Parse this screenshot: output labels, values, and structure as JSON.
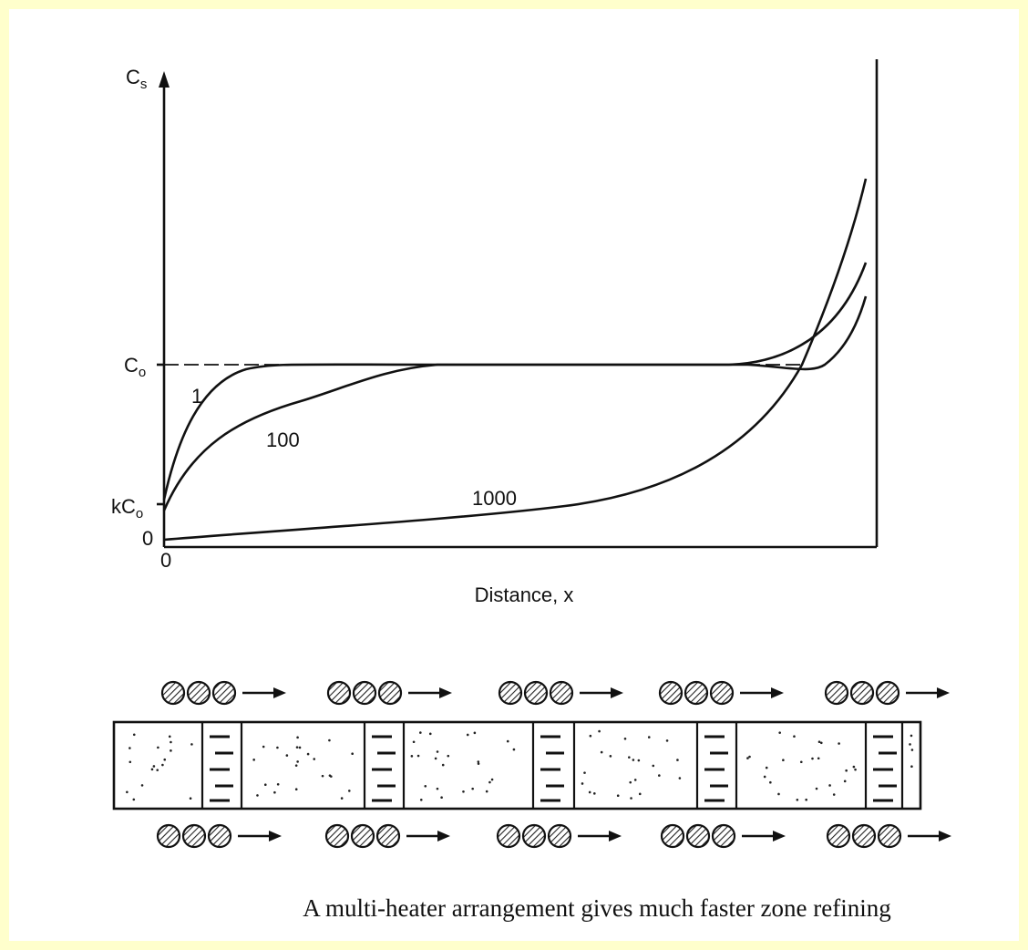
{
  "plot": {
    "y_axis_label": {
      "main": "C",
      "sub": "s"
    },
    "y_marks": [
      {
        "main": "C",
        "sub": "o"
      },
      {
        "main": "kC",
        "sub": "o"
      },
      {
        "main": "0",
        "sub": ""
      }
    ],
    "x_origin": "0",
    "x_axis_label": "Distance, x",
    "curve_labels": [
      "1",
      "100",
      "1000"
    ]
  },
  "caption": "A multi-heater arrangement gives much faster zone refining"
}
